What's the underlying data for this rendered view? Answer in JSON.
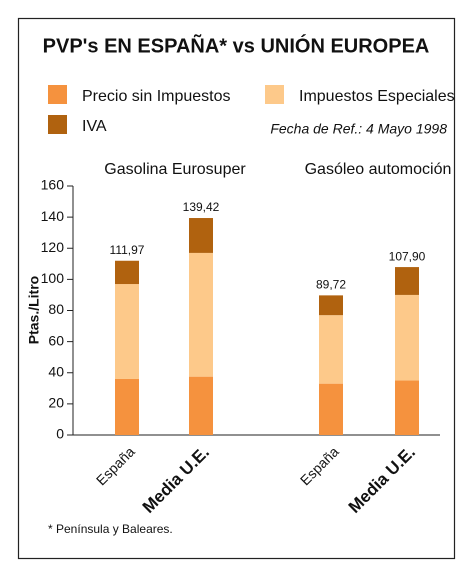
{
  "chart_data": {
    "type": "stacked_bar",
    "title": "PVP's EN ESPAÑA* vs UNIÓN EUROPEA",
    "note": "Fecha de Ref.: 4 Mayo 1998",
    "footnote": "* Península y Baleares.",
    "y_label": "Ptas./Litro",
    "groups": [
      "Gasolina Eurosuper",
      "Gasóleo automoción"
    ],
    "categories": [
      "España",
      "Media U.E.",
      "España",
      "Media U.E."
    ],
    "series": [
      {
        "name": "Precio sin Impuestos",
        "color": "#f5923e",
        "values": [
          36,
          37.5,
          33,
          35
        ]
      },
      {
        "name": "Impuestos Especiales",
        "color": "#fdc98a",
        "values": [
          61,
          79.5,
          44,
          55
        ]
      },
      {
        "name": "IVA",
        "color": "#b0620f",
        "values": [
          14.97,
          22.42,
          12.72,
          17.9
        ]
      }
    ],
    "totals": [
      111.97,
      139.42,
      89.72,
      107.9
    ],
    "total_labels": [
      "111,97",
      "139,42",
      "89,72",
      "107,90"
    ],
    "ylim": [
      0,
      160
    ],
    "yticks": [
      0,
      20,
      40,
      60,
      80,
      100,
      120,
      140,
      160
    ]
  }
}
